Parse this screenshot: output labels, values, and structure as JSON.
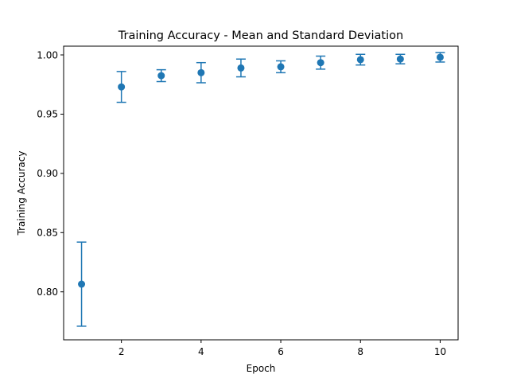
{
  "chart_data": {
    "type": "scatter",
    "title": "Training Accuracy - Mean and Standard Deviation",
    "xlabel": "Epoch",
    "ylabel": "Training Accuracy",
    "xlim": [
      0.55,
      10.45
    ],
    "ylim": [
      0.7595,
      1.0074
    ],
    "xticks": [
      2,
      4,
      6,
      8,
      10
    ],
    "yticks": [
      0.8,
      0.85,
      0.9,
      0.95,
      1.0
    ],
    "ytick_labels": [
      "0.80",
      "0.85",
      "0.90",
      "0.95",
      "1.00"
    ],
    "grid": false,
    "color": "#1f77b4",
    "series": [
      {
        "x": [
          1,
          2,
          3,
          4,
          5,
          6,
          7,
          8,
          9,
          10
        ],
        "mean": [
          0.8065,
          0.973,
          0.9825,
          0.985,
          0.989,
          0.99,
          0.9935,
          0.996,
          0.9965,
          0.998
        ],
        "std": [
          0.0355,
          0.013,
          0.005,
          0.0085,
          0.0075,
          0.005,
          0.0055,
          0.0045,
          0.004,
          0.004
        ]
      }
    ]
  }
}
